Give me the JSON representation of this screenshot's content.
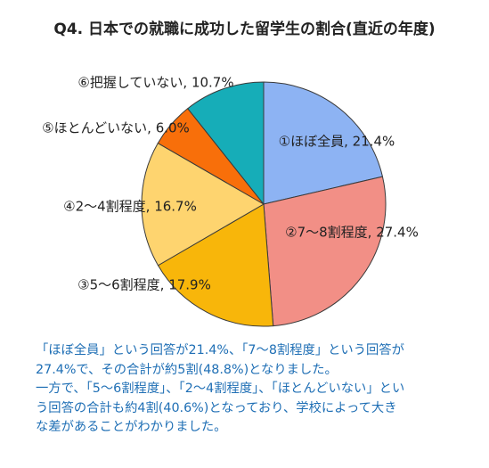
{
  "chart_data": {
    "type": "pie",
    "title": "Q4. 日本での就職に成功した留学生の割合(直近の年度)",
    "slices": [
      {
        "label": "①ほぼ全員, 21.4%",
        "value": 21.4,
        "color": "#8db3f3"
      },
      {
        "label": "②7～8割程度, 27.4%",
        "value": 27.4,
        "color": "#f28f86"
      },
      {
        "label": "③5～6割程度, 17.9%",
        "value": 17.9,
        "color": "#f8b60a"
      },
      {
        "label": "④2～4割程度, 16.7%",
        "value": 16.7,
        "color": "#fed46f"
      },
      {
        "label": "⑤ほとんどいない, 6.0%",
        "value": 6.0,
        "color": "#f86f0a"
      },
      {
        "label": "⑥把握していない, 10.7%",
        "value": 10.7,
        "color": "#16adb8"
      }
    ],
    "start": "12 o'clock",
    "direction": "clockwise"
  },
  "caption": [
    "「ほぼ全員」という回答が21.4%、「7～8割程度」という回答が",
    "27.4%で、その合計が約5割(48.8%)となりました。",
    "一方で、「5～6割程度」、「2～4割程度」、「ほとんどいない」とい",
    "う回答の合計も約4割(40.6%)となっており、学校によって大き",
    "な差があることがわかりました。"
  ]
}
